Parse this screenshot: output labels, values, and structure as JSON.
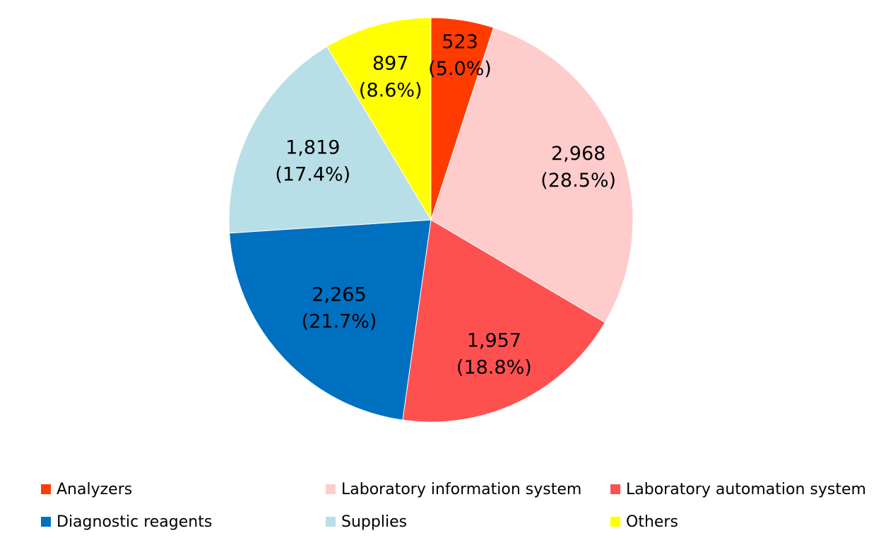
{
  "chart_data": {
    "type": "pie",
    "title": "",
    "slices": [
      {
        "name": "Analyzers",
        "value": 523,
        "percent_label": "(5.0%)",
        "value_label": "523",
        "color": "#FF3B00"
      },
      {
        "name": "Laboratory information system",
        "value": 2968,
        "percent_label": "(28.5%)",
        "value_label": "2,968",
        "color": "#FFCCCC"
      },
      {
        "name": "Laboratory automation system",
        "value": 1957,
        "percent_label": "(18.8%)",
        "value_label": "1,957",
        "color": "#FF5050"
      },
      {
        "name": "Diagnostic reagents",
        "value": 2265,
        "percent_label": "(21.7%)",
        "value_label": "2,265",
        "color": "#0070C0"
      },
      {
        "name": "Supplies",
        "value": 1819,
        "percent_label": "(17.4%)",
        "value_label": "1,819",
        "color": "#B8DEE8"
      },
      {
        "name": "Others",
        "value": 897,
        "percent_label": "(8.6%)",
        "value_label": "897",
        "color": "#FFFF00"
      }
    ],
    "legend_position": "bottom",
    "start_angle": "12 o'clock",
    "direction": "clockwise"
  },
  "legend": {
    "items": [
      {
        "label": "Analyzers",
        "color": "#FF3B00"
      },
      {
        "label": "Laboratory information system",
        "color": "#FFCCCC"
      },
      {
        "label": "Laboratory automation system",
        "color": "#FF5050"
      },
      {
        "label": "Diagnostic reagents",
        "color": "#0070C0"
      },
      {
        "label": "Supplies",
        "color": "#B8DEE8"
      },
      {
        "label": "Others",
        "color": "#FFFF00"
      }
    ]
  }
}
